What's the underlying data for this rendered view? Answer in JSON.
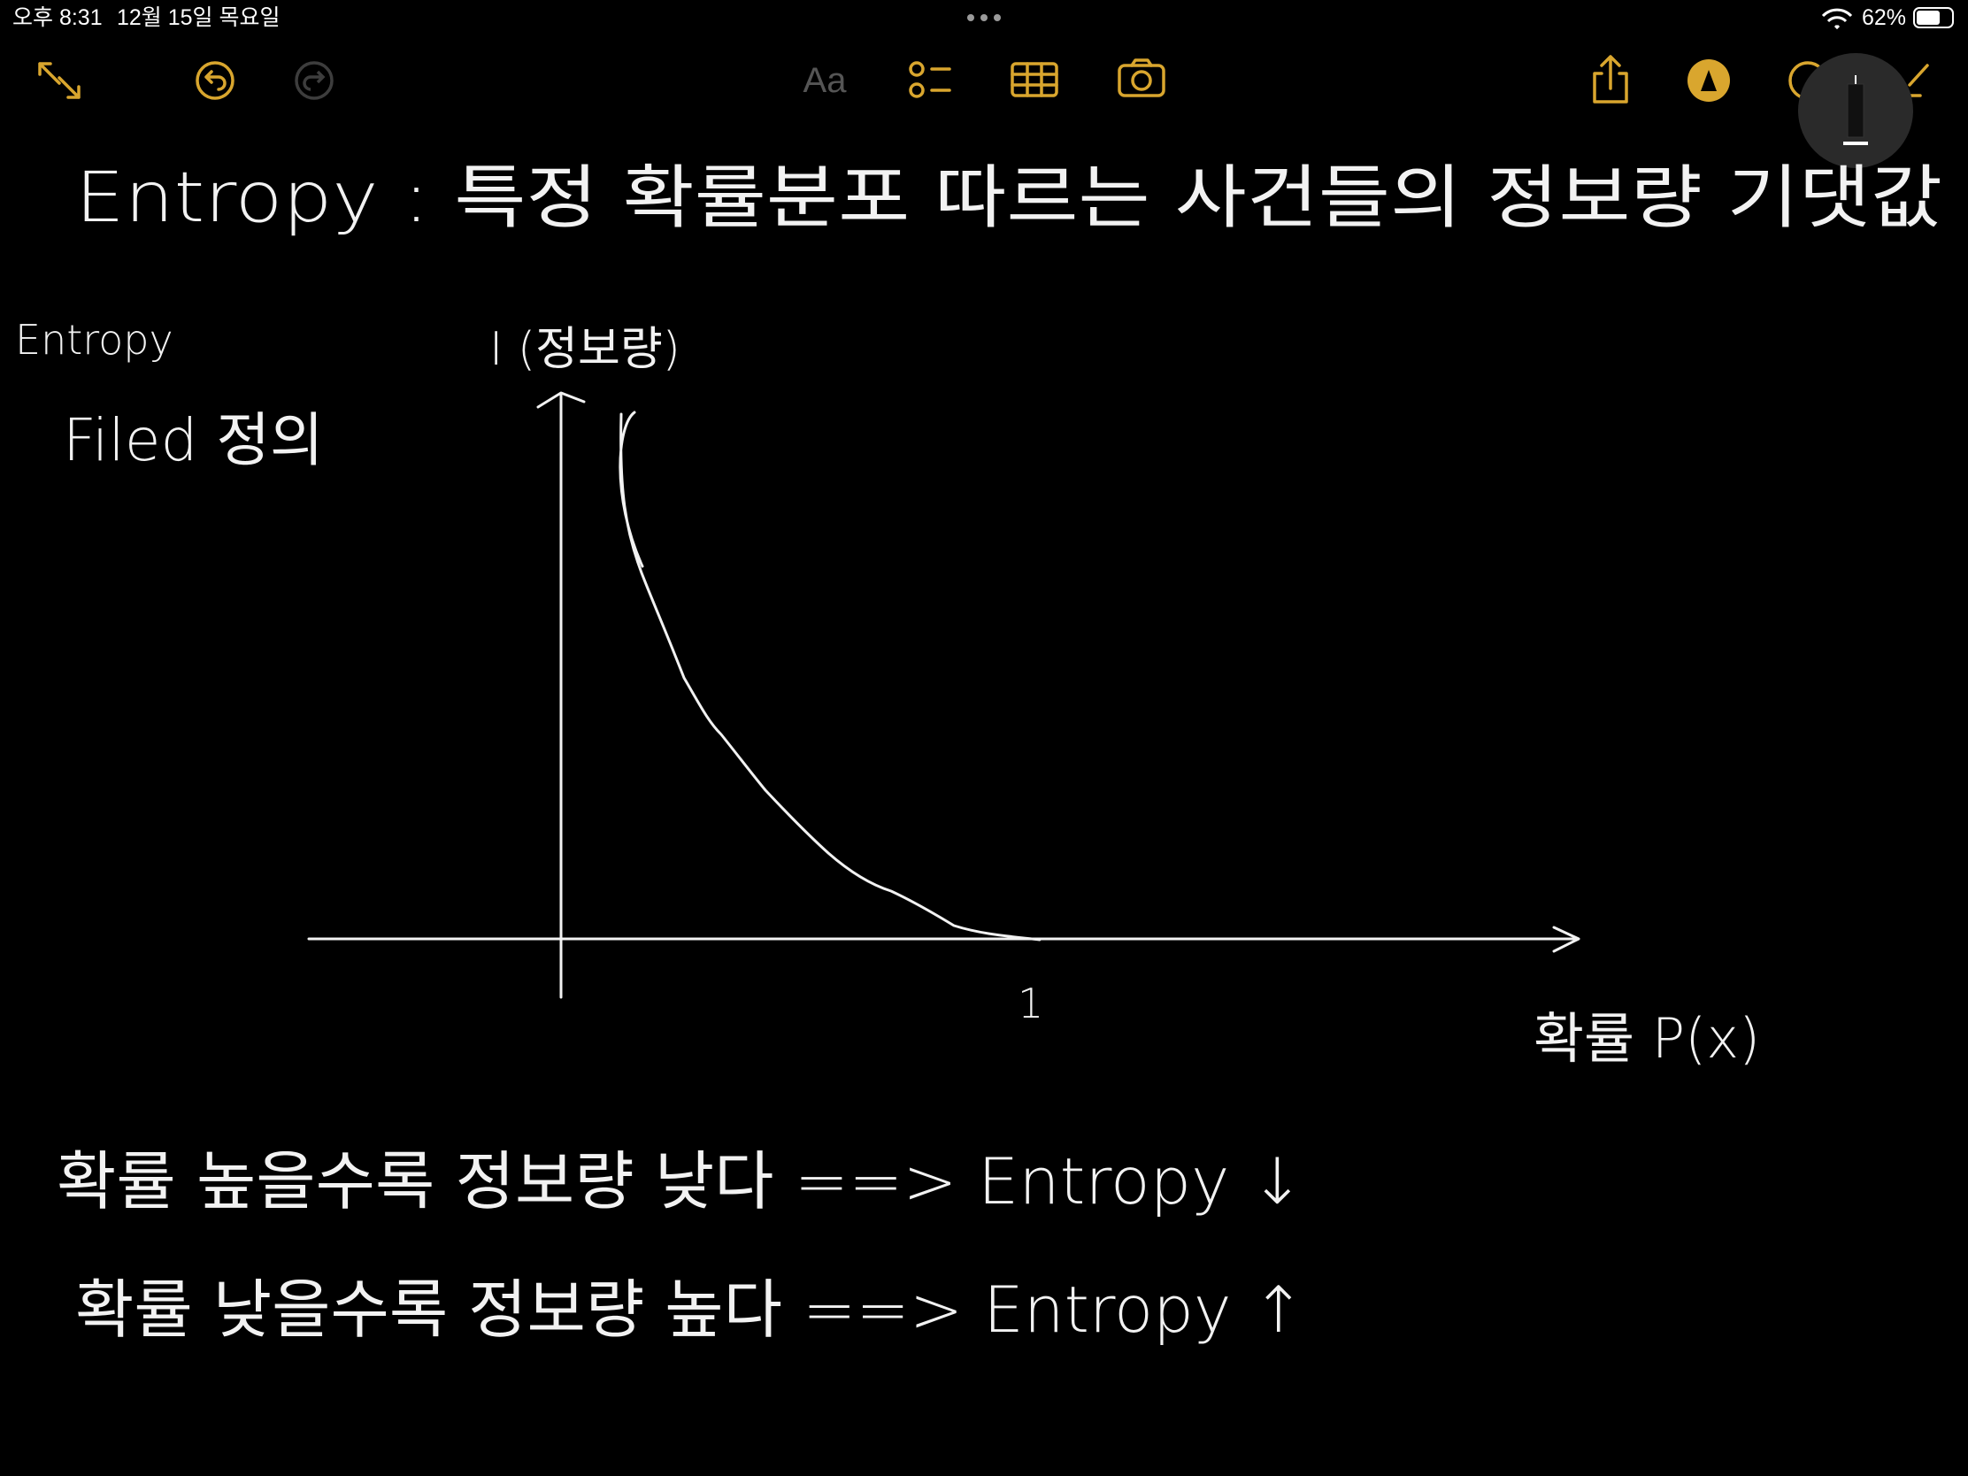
{
  "status_bar": {
    "time": "오후 8:31",
    "date": "12월 15일 목요일",
    "battery": "62%"
  },
  "toolbar": {
    "format_label": "Aa"
  },
  "note": {
    "title": "Entropy : 특정 확률분포 따르는 사건들의 정보량 기댓값",
    "side_label": "Entropy",
    "side_note": "Filed 정의",
    "graph": {
      "y_label": "I (정보량)",
      "x_label": "확률 P(x)",
      "x_tick": "1"
    },
    "lines": [
      "확률 높을수록 정보량 낮다 ==> Entropy ↓",
      "확률 낮을수록 정보량 높다 ==> Entropy ↑"
    ]
  }
}
